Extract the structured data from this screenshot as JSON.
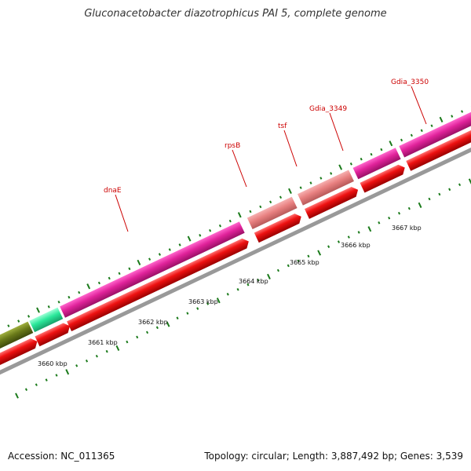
{
  "title": "Gluconacetobacter diazotrophicus PAI 5, complete genome",
  "accession": "Accession: NC_011365",
  "summary": "Topology: circular; Length: 3,887,492 bp; Genes: 3,539",
  "ruler_labels": [
    "3660 kbp",
    "3661 kbp",
    "3662 kbp",
    "3663 kbp",
    "3664 kbp",
    "3665 kbp",
    "3666 kbp",
    "3667 kbp"
  ],
  "gene_labels": [
    "dnaE",
    "rpsB",
    "tsf",
    "Gdia_3349",
    "Gdia_3350"
  ],
  "colors": {
    "magenta": "#e0229a",
    "salmon": "#e88080",
    "green": "#2ae89a",
    "olive": "#6a7a1a",
    "red_cds": "#ee1111",
    "backbone": "#999999",
    "tick": "#1a7a1a",
    "label_red": "#cc0000"
  }
}
